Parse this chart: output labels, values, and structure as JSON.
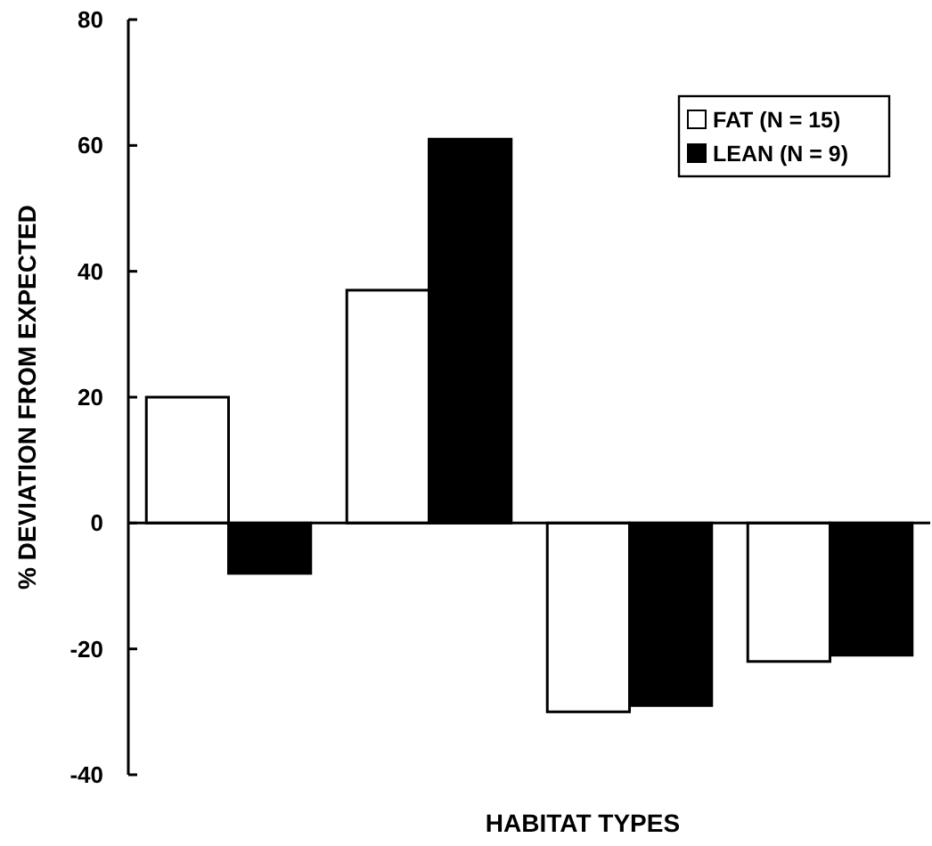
{
  "chart_data": {
    "type": "bar",
    "xlabel": "HABITAT TYPES",
    "ylabel": "% DEVIATION FROM EXPECTED",
    "categories": [
      null,
      null,
      null,
      null
    ],
    "series": [
      {
        "name": "FAT (N = 15)",
        "color": "#ffffff",
        "values": [
          20,
          37,
          -30,
          -22
        ]
      },
      {
        "name": "LEAN (N = 9)",
        "color": "#000000",
        "values": [
          -8,
          61,
          -29,
          -21
        ]
      }
    ],
    "ylim": [
      -40,
      80
    ],
    "yticks": [
      -40,
      -20,
      0,
      20,
      40,
      60,
      80
    ],
    "legend": "top right"
  }
}
